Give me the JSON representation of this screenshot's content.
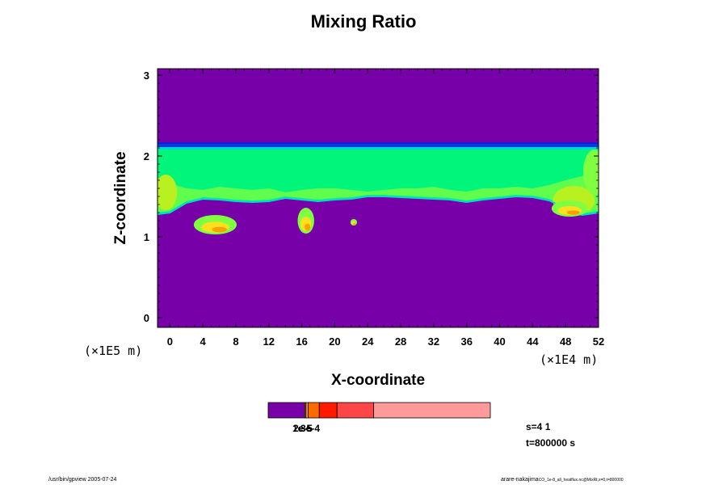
{
  "chart_data": {
    "type": "heatmap",
    "title": "Mixing Ratio",
    "xlabel": "X-coordinate",
    "ylabel": "Z-coordinate",
    "x_unit": "(×1E4 m)",
    "y_unit": "(×1E5 m)",
    "xlim": [
      -1.5,
      52
    ],
    "ylim": [
      -0.12,
      3.08
    ],
    "x_ticks": [
      0,
      4,
      8,
      12,
      16,
      20,
      24,
      28,
      32,
      36,
      40,
      44,
      48,
      52
    ],
    "y_ticks": [
      0,
      1,
      2,
      3
    ],
    "background_value_color": "#7700a8",
    "layer": {
      "top_z": 2.15,
      "blue_band_z": [
        2.11,
        2.17
      ],
      "base_z_profile": {
        "x": [
          -1.5,
          0,
          2,
          4,
          6,
          8,
          10,
          12,
          14,
          16,
          18,
          20,
          22,
          24,
          26,
          28,
          30,
          32,
          34,
          36,
          38,
          40,
          42,
          44,
          46,
          48,
          50,
          52
        ],
        "z": [
          1.28,
          1.3,
          1.42,
          1.47,
          1.46,
          1.44,
          1.43,
          1.44,
          1.48,
          1.46,
          1.44,
          1.46,
          1.47,
          1.5,
          1.5,
          1.49,
          1.48,
          1.47,
          1.46,
          1.43,
          1.46,
          1.48,
          1.5,
          1.49,
          1.45,
          1.35,
          1.27,
          1.3
        ]
      }
    },
    "plumes": [
      {
        "x": 5.5,
        "z": 1.15,
        "rx": 2.6,
        "rz": 0.12
      },
      {
        "x": 16.5,
        "z": 1.2,
        "rx": 1.0,
        "rz": 0.16
      },
      {
        "x": 22.3,
        "z": 1.18,
        "rx": 0.4,
        "rz": 0.04
      },
      {
        "x": 48.5,
        "z": 1.35,
        "rx": 2.2,
        "rz": 0.1
      }
    ],
    "colorbar": {
      "segments": [
        {
          "color": "#7700a8",
          "weight": 16.5
        },
        {
          "color": "#f2d000",
          "weight": 0.5
        },
        {
          "color": "#ff9900",
          "weight": 1
        },
        {
          "color": "#ff6a00",
          "weight": 5
        },
        {
          "color": "#ff1a00",
          "weight": 8
        },
        {
          "color": "#ff4646",
          "weight": 16.5
        },
        {
          "color": "#ff9a9a",
          "weight": 52.5
        }
      ],
      "tick_labels": [
        "1e-5",
        "2e-5",
        "3e-4"
      ]
    },
    "colors": {
      "background": "#7700a8",
      "layer_green": "#00f57a",
      "layer_lightgreen": "#80ff40",
      "layer_yellowgreen": "#b8f020",
      "layer_cyan": "#00d8d8",
      "layer_blue": "#0022dd",
      "plume_yellow": "#ffe020",
      "plume_orange": "#ffa000"
    }
  },
  "info": {
    "line1": "s=4 1",
    "line2": "t=800000 s"
  },
  "footer": {
    "left": "/usr/bin/gpview 2005-07-24",
    "right_prefix": "arare-nakajima",
    "right_suffix": "CO_1e-8_all_heatflux.nc@MixRt,x=0,t=800000"
  }
}
